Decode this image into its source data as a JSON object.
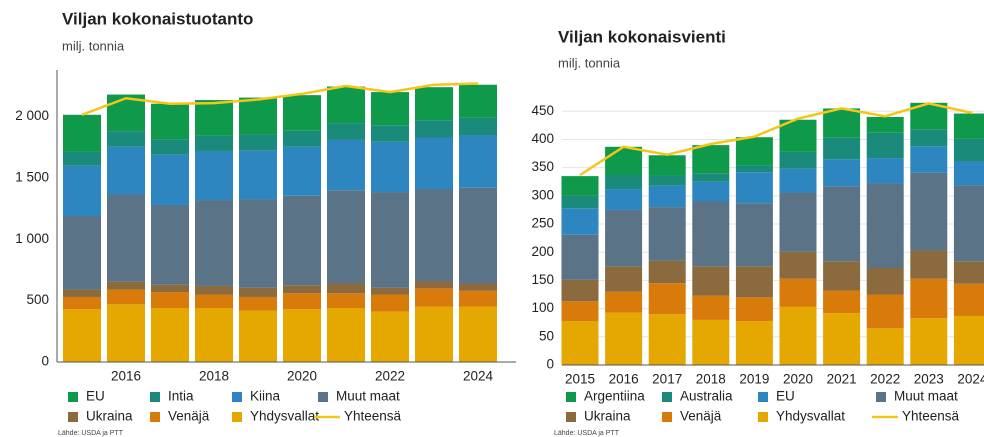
{
  "chart_data": [
    {
      "type": "bar",
      "stacked": true,
      "title": "Viljan kokonaistuotanto",
      "subtitle": "milj. tonnia",
      "source": "Lähde: USDA ja PTT",
      "categories": [
        null,
        "2016",
        null,
        "2018",
        null,
        "2020",
        null,
        "2022",
        null,
        "2024"
      ],
      "ylim": [
        0,
        2380
      ],
      "yticks": [
        0,
        500,
        {
          "value": 1000,
          "label": "1 000"
        },
        {
          "value": 1500,
          "label": "1 500"
        },
        {
          "value": 2000,
          "label": "2 000"
        }
      ],
      "grid": false,
      "series": [
        {
          "name": "EU",
          "color": "#0e9a4a",
          "values": [
            300,
            300,
            290,
            290,
            300,
            290,
            300,
            270,
            270,
            270
          ]
        },
        {
          "name": "Intia",
          "color": "#1a8a7a",
          "values": [
            115,
            125,
            125,
            125,
            130,
            130,
            135,
            135,
            140,
            140
          ]
        },
        {
          "name": "Kiina",
          "color": "#2e86c1",
          "values": [
            410,
            390,
            410,
            400,
            400,
            400,
            410,
            410,
            420,
            430
          ]
        },
        {
          "name": "Muut maat",
          "color": "#5a7386",
          "values": [
            600,
            710,
            650,
            700,
            720,
            730,
            760,
            780,
            750,
            780
          ]
        },
        {
          "name": "Ukraina",
          "color": "#8b6a3e",
          "values": [
            60,
            65,
            60,
            70,
            75,
            65,
            80,
            55,
            60,
            60
          ]
        },
        {
          "name": "Venäjä",
          "color": "#d97b0b",
          "values": [
            100,
            120,
            130,
            110,
            110,
            130,
            120,
            140,
            150,
            130
          ]
        },
        {
          "name": "Yhdysvallat",
          "color": "#e5a800",
          "values": [
            430,
            470,
            440,
            440,
            420,
            430,
            440,
            410,
            450,
            450
          ]
        },
        {
          "name": "Yhteensä",
          "color": "#f5c518",
          "type": "line",
          "values": [
            2015,
            2150,
            2105,
            2110,
            2140,
            2185,
            2250,
            2200,
            2260,
            2270
          ]
        }
      ]
    },
    {
      "type": "bar",
      "stacked": true,
      "title": "Viljan kokonaisvienti",
      "subtitle": "milj. tonnia",
      "source": "Lähde: USDA ja PTT",
      "categories": [
        "2015",
        "2016",
        "2017",
        "2018",
        "2019",
        "2020",
        "2021",
        "2022",
        "2023",
        "2024"
      ],
      "ylim": [
        0,
        470
      ],
      "yticks": [
        0,
        50,
        100,
        150,
        200,
        250,
        300,
        350,
        400,
        450
      ],
      "grid": true,
      "series": [
        {
          "name": "Argentiina",
          "color": "#0e9a4a",
          "values": [
            35,
            50,
            36,
            50,
            50,
            57,
            52,
            28,
            47,
            45
          ]
        },
        {
          "name": "Australia",
          "color": "#1a8a7a",
          "values": [
            22,
            25,
            18,
            15,
            12,
            30,
            38,
            45,
            30,
            40
          ]
        },
        {
          "name": "EU",
          "color": "#2e86c1",
          "values": [
            47,
            37,
            38,
            35,
            55,
            42,
            48,
            45,
            47,
            42
          ]
        },
        {
          "name": "Muut maat",
          "color": "#5a7386",
          "values": [
            80,
            100,
            95,
            115,
            112,
            105,
            133,
            150,
            138,
            135
          ]
        },
        {
          "name": "Ukraina",
          "color": "#8b6a3e",
          "values": [
            38,
            45,
            40,
            52,
            55,
            48,
            52,
            47,
            50,
            40
          ]
        },
        {
          "name": "Venäjä",
          "color": "#d97b0b",
          "values": [
            35,
            37,
            55,
            43,
            42,
            50,
            40,
            60,
            70,
            57
          ]
        },
        {
          "name": "Yhdysvallat",
          "color": "#e5a800",
          "values": [
            78,
            93,
            90,
            80,
            78,
            103,
            92,
            65,
            83,
            87
          ]
        },
        {
          "name": "Yhteensä",
          "color": "#f5c518",
          "type": "line",
          "values": [
            337,
            387,
            373,
            392,
            405,
            437,
            455,
            441,
            464,
            447
          ]
        }
      ]
    }
  ]
}
